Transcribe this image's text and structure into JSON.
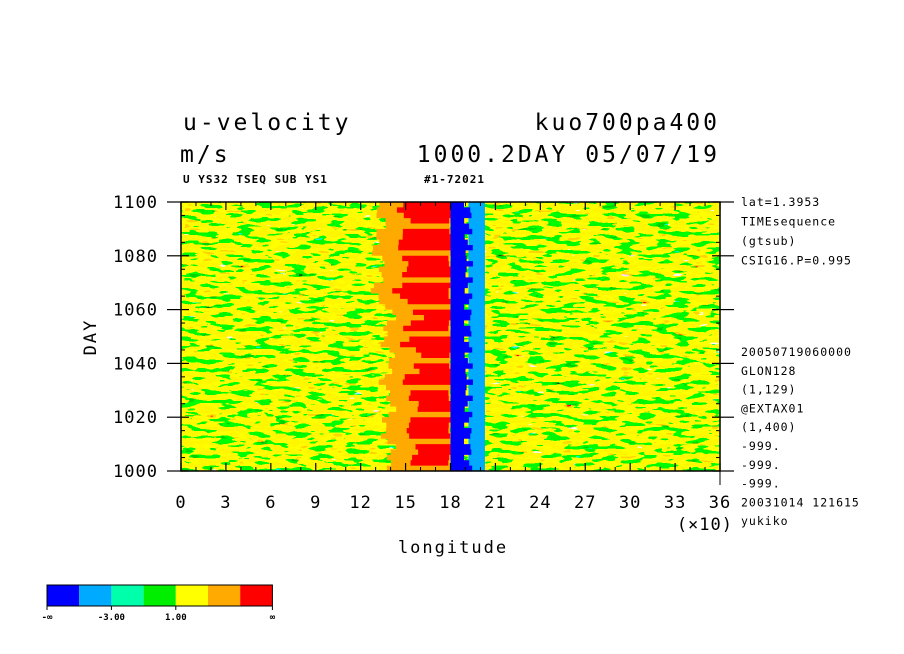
{
  "header": {
    "variable": "u-velocity",
    "units": "m/s",
    "run_name": "kuo700pa400",
    "time_info": "1000.2DAY 05/07/19",
    "sub_line": "U YS32 TSEQ SUB YS1",
    "run_id": "#1-72021"
  },
  "chart_data": {
    "type": "heatmap",
    "xlabel": "longitude",
    "ylabel": "DAY",
    "x_multiplier": "(×10)",
    "xlim": [
      0,
      36
    ],
    "ylim": [
      1000,
      1100
    ],
    "x_ticks": [
      "0",
      "3",
      "6",
      "9",
      "12",
      "15",
      "18",
      "21",
      "24",
      "27",
      "30",
      "33",
      "36"
    ],
    "y_ticks": [
      "1000",
      "1020",
      "1040",
      "1060",
      "1080",
      "1100"
    ],
    "description_values": {
      "strong_westerly_band_longitude": [
        15,
        18
      ],
      "easterly_band_longitude": [
        18,
        19.5
      ]
    }
  },
  "side_info": {
    "top": [
      "lat=1.3953",
      "TIMEsequence",
      "(gtsub)",
      "CSIG16.P=0.995"
    ],
    "bottom": [
      "20050719060000",
      "GLON128",
      "(1,129)",
      "@EXTAX01",
      "(1,400)",
      "-999.",
      "-999.",
      "-999.",
      "20031014 121615",
      "yukiko"
    ]
  },
  "colorbar": {
    "colors": [
      "#0000ff",
      "#00aaff",
      "#00ffaa",
      "#00ee00",
      "#ffff00",
      "#ffaa00",
      "#ff0000"
    ],
    "labels": [
      "-∞",
      "-3.00",
      "1.00",
      "∞"
    ]
  }
}
